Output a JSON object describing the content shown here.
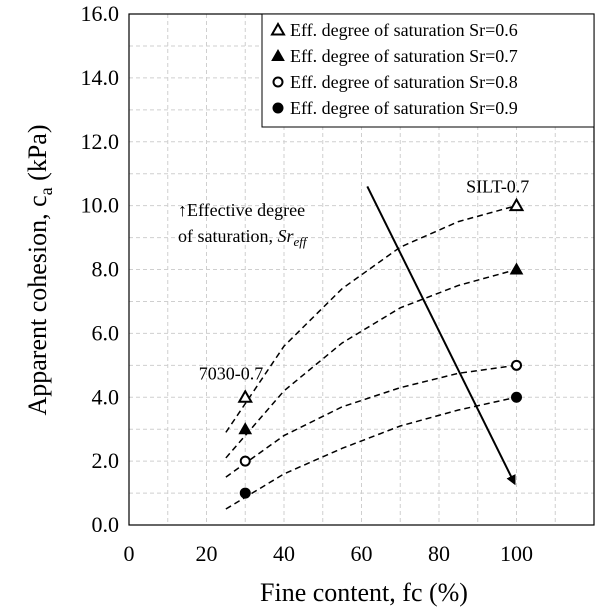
{
  "chart_data": {
    "type": "scatter",
    "xlabel": "Fine content, fc (%)",
    "ylabel_main": "Apparent cohesion, c",
    "ylabel_sub": "a",
    "ylabel_unit": " (kPa)",
    "xlim": [
      0,
      120
    ],
    "ylim": [
      0,
      16
    ],
    "x_ticks": [
      0,
      20,
      40,
      60,
      80,
      100
    ],
    "x_tick_labels": [
      "0",
      "20",
      "40",
      "60",
      "80",
      "100"
    ],
    "y_ticks": [
      0,
      2,
      4,
      6,
      8,
      10,
      12,
      14,
      16
    ],
    "y_tick_labels": [
      "0.0",
      "2.0",
      "4.0",
      "6.0",
      "8.0",
      "10.0",
      "12.0",
      "14.0",
      "16.0"
    ],
    "grid": true,
    "legend_position": "top-right",
    "series": [
      {
        "name": "Eff. degree of saturation Sr=0.6",
        "marker": "triangle-open",
        "x": [
          30,
          100
        ],
        "y": [
          4.0,
          10.0
        ]
      },
      {
        "name": "Eff. degree of saturation Sr=0.7",
        "marker": "triangle-filled",
        "x": [
          30,
          100
        ],
        "y": [
          3.0,
          8.0
        ]
      },
      {
        "name": "Eff. degree of saturation Sr=0.8",
        "marker": "circle-open",
        "x": [
          30,
          100
        ],
        "y": [
          2.0,
          5.0
        ]
      },
      {
        "name": "Eff. degree of saturation Sr=0.9",
        "marker": "circle-filled",
        "x": [
          30,
          100
        ],
        "y": [
          1.0,
          4.0
        ]
      }
    ],
    "fit_curves": [
      {
        "x": [
          25,
          40,
          55,
          70,
          85,
          100
        ],
        "y": [
          2.9,
          5.6,
          7.4,
          8.7,
          9.5,
          10.0
        ]
      },
      {
        "x": [
          25,
          40,
          55,
          70,
          85,
          100
        ],
        "y": [
          2.1,
          4.2,
          5.7,
          6.8,
          7.5,
          8.0
        ]
      },
      {
        "x": [
          25,
          40,
          55,
          70,
          85,
          100
        ],
        "y": [
          1.5,
          2.8,
          3.7,
          4.3,
          4.75,
          5.0
        ]
      },
      {
        "x": [
          25,
          40,
          55,
          70,
          85,
          100
        ],
        "y": [
          0.5,
          1.6,
          2.4,
          3.1,
          3.6,
          4.0
        ]
      }
    ],
    "annotations": {
      "arrow_line1": "↑Effective degree",
      "arrow_line2": "of saturation, ",
      "arrow_symbol": "Sr",
      "arrow_symbol_sub": "eff",
      "arrow_from": [
        61.5,
        10.6
      ],
      "arrow_to": [
        99.5,
        1.3
      ],
      "label_left": "7030-0.7",
      "label_left_at": [
        18,
        4.75
      ],
      "label_right": "SILT-0.7",
      "label_right_at": [
        87,
        10.6
      ]
    }
  }
}
